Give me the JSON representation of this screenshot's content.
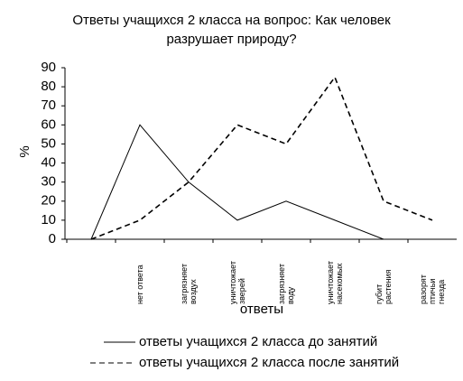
{
  "chart_data": {
    "type": "line",
    "title": "Ответы учащихся 2 класса на вопрос: Как человек\nразрушает природу?",
    "x_label": "ответы",
    "y_label": "%",
    "categories": [
      null,
      "нет ответа",
      "загрязняет\nвоздух",
      "уничтожает\nзверей",
      "загрязняет\nводу",
      "уничтожает\nнасекомых",
      "губит\nрастения",
      "разорят\nптичьи\nгнезда"
    ],
    "series": [
      {
        "name": "ответы учащихся 2 класса до занятий",
        "color": "#000000",
        "dash": "solid",
        "values": [
          0,
          60,
          30,
          10,
          20,
          10,
          0,
          null
        ]
      },
      {
        "name": "ответы учащихся 2 класса после занятий",
        "color": "#000000",
        "dash": "dashed",
        "values": [
          0,
          10,
          30,
          60,
          50,
          85,
          20,
          10
        ]
      }
    ],
    "ylim": [
      0,
      90
    ],
    "yticks": [
      0,
      10,
      20,
      30,
      40,
      50,
      60,
      70,
      80,
      90
    ],
    "grid": false,
    "legend": "bottom"
  }
}
